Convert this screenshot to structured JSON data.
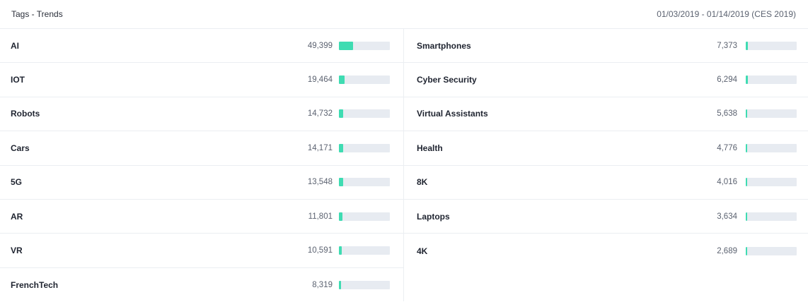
{
  "header": {
    "title": "Tags - Trends",
    "date_range": "01/03/2019 - 01/14/2019 (CES 2019)"
  },
  "colors": {
    "bar_fill": "#3fdcb2",
    "bar_track": "#e7ebf1"
  },
  "max_count": 49399,
  "left": [
    {
      "name": "AI",
      "count": "49,399",
      "value": 49399
    },
    {
      "name": "IOT",
      "count": "19,464",
      "value": 19464
    },
    {
      "name": "Robots",
      "count": "14,732",
      "value": 14732
    },
    {
      "name": "Cars",
      "count": "14,171",
      "value": 14171
    },
    {
      "name": "5G",
      "count": "13,548",
      "value": 13548
    },
    {
      "name": "AR",
      "count": "11,801",
      "value": 11801
    },
    {
      "name": "VR",
      "count": "10,591",
      "value": 10591
    },
    {
      "name": "FrenchTech",
      "count": "8,319",
      "value": 8319
    }
  ],
  "right": [
    {
      "name": "Smartphones",
      "count": "7,373",
      "value": 7373
    },
    {
      "name": "Cyber Security",
      "count": "6,294",
      "value": 6294
    },
    {
      "name": "Virtual Assistants",
      "count": "5,638",
      "value": 5638
    },
    {
      "name": "Health",
      "count": "4,776",
      "value": 4776
    },
    {
      "name": "8K",
      "count": "4,016",
      "value": 4016
    },
    {
      "name": "Laptops",
      "count": "3,634",
      "value": 3634
    },
    {
      "name": "4K",
      "count": "2,689",
      "value": 2689
    }
  ]
}
